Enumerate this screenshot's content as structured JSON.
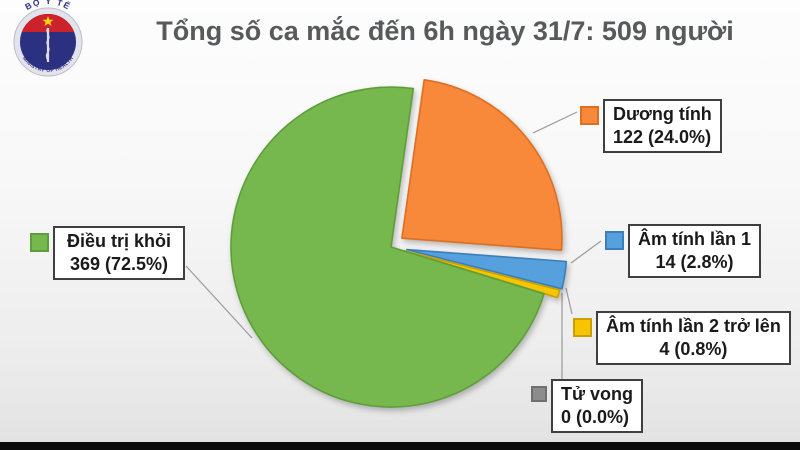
{
  "logo": {
    "top_text": "BỘ Y TẾ",
    "bottom_text": "MINISTRY OF HEALTH"
  },
  "chart_data": {
    "type": "pie",
    "title": "Tổng số ca mắc đến 6h ngày 31/7: 509 người",
    "total_cases": 509,
    "start_angle_deg": 8,
    "legend_position": "callout-boxes",
    "colors": {
      "background_top": "#fdfdfd",
      "background_bottom": "#e2e2e2",
      "title_text": "#58595b",
      "bottom_bar": "#0c0c0c"
    },
    "segments": [
      {
        "label": "Dương tính",
        "value": 122,
        "percent": "24.0%",
        "display": "122 (24.0%)",
        "color": "#f8883a",
        "edge": "#dd6f1f"
      },
      {
        "label": "Âm tính lần 1",
        "value": 14,
        "percent": "2.8%",
        "display": "14 (2.8%)",
        "color": "#55a0dd",
        "edge": "#3a7fba"
      },
      {
        "label": "Âm tính lần 2 trở lên",
        "value": 4,
        "percent": "0.8%",
        "display": "4 (0.8%)",
        "color": "#f6c500",
        "edge": "#c9a000"
      },
      {
        "label": "Tử vong",
        "value": 0,
        "percent": "0.0%",
        "display": "0 (0.0%)",
        "color": "#8c8c8c",
        "edge": "#6f6f6f"
      },
      {
        "label": "Điều trị khỏi",
        "value": 369,
        "percent": "72.5%",
        "display": "369 (72.5%)",
        "color": "#76b84e",
        "edge": "#5e9e3a"
      }
    ]
  }
}
